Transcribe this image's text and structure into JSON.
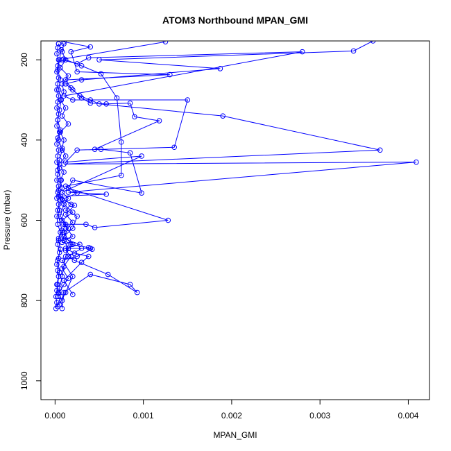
{
  "chart_data": {
    "type": "line",
    "title": "ATOM3 Northbound MPAN_GMI",
    "xlabel": "MPAN_GMI",
    "ylabel": "Pressure (mbar)",
    "xlim": [
      -0.00016,
      0.00424
    ],
    "ylim": [
      1047,
      153
    ],
    "y_inverted": true,
    "grid": false,
    "color": "#0000ff",
    "x_ticks": [
      0,
      0.001,
      0.002,
      0.003,
      0.004
    ],
    "x_tick_labels": [
      "0.000",
      "0.001",
      "0.002",
      "0.003",
      "0.004"
    ],
    "y_ticks": [
      200,
      400,
      600,
      800,
      1000
    ],
    "y_tick_labels": [
      "200",
      "400",
      "600",
      "800",
      "1000"
    ],
    "series": [
      {
        "points": [
          [
            1e-05,
            820
          ],
          [
            2e-05,
            805
          ],
          [
            1e-05,
            790
          ],
          [
            2e-05,
            775
          ],
          [
            3e-05,
            760
          ],
          [
            4e-05,
            740
          ],
          [
            3e-05,
            725
          ],
          [
            2e-05,
            710
          ],
          [
            4e-05,
            695
          ],
          [
            5e-05,
            680
          ],
          [
            3e-05,
            660
          ],
          [
            4e-05,
            645
          ],
          [
            6e-05,
            630
          ],
          [
            3e-05,
            610
          ],
          [
            2e-05,
            590
          ],
          [
            5e-05,
            575
          ],
          [
            4e-05,
            560
          ],
          [
            2e-05,
            545
          ],
          [
            3e-05,
            530
          ],
          [
            4e-05,
            515
          ],
          [
            2e-05,
            500
          ],
          [
            3e-05,
            485
          ],
          [
            5e-05,
            470
          ],
          [
            2e-05,
            455
          ],
          [
            3e-05,
            440
          ],
          [
            4e-05,
            425
          ],
          [
            2e-05,
            410
          ],
          [
            3e-05,
            395
          ],
          [
            5e-05,
            380
          ],
          [
            2e-05,
            365
          ],
          [
            3e-05,
            350
          ],
          [
            4e-05,
            335
          ],
          [
            2e-05,
            320
          ],
          [
            3e-05,
            305
          ],
          [
            4e-05,
            290
          ],
          [
            2e-05,
            275
          ],
          [
            3e-05,
            260
          ],
          [
            4e-05,
            245
          ],
          [
            2e-05,
            230
          ],
          [
            3e-05,
            215
          ],
          [
            4e-05,
            200
          ],
          [
            2e-05,
            185
          ],
          [
            3e-05,
            170
          ],
          [
            4e-05,
            160
          ]
        ]
      },
      {
        "points": [
          [
            3e-05,
            815
          ],
          [
            6e-05,
            790
          ],
          [
            5e-05,
            770
          ],
          [
            8e-05,
            740
          ],
          [
            0.0001,
            715
          ],
          [
            0.00012,
            690
          ],
          [
            0.00015,
            670
          ],
          [
            0.0001,
            650
          ],
          [
            8e-05,
            630
          ],
          [
            0.00012,
            610
          ],
          [
            6e-05,
            590
          ],
          [
            0.0001,
            560
          ],
          [
            4e-05,
            540
          ],
          [
            8e-05,
            520
          ],
          [
            6e-05,
            500
          ],
          [
            0.0001,
            480
          ],
          [
            5e-05,
            460
          ],
          [
            0.00012,
            440
          ],
          [
            8e-05,
            420
          ],
          [
            0.0001,
            400
          ],
          [
            6e-05,
            380
          ],
          [
            0.00015,
            360
          ],
          [
            8e-05,
            340
          ],
          [
            0.00012,
            320
          ],
          [
            6e-05,
            300
          ],
          [
            0.0001,
            280
          ],
          [
            8e-05,
            260
          ],
          [
            0.00015,
            240
          ],
          [
            6e-05,
            220
          ],
          [
            0.00012,
            200
          ],
          [
            8e-05,
            180
          ],
          [
            0.0001,
            160
          ]
        ]
      },
      {
        "points": [
          [
            8e-05,
            820
          ],
          [
            0.0001,
            780
          ],
          [
            0.0004,
            735
          ],
          [
            0.00085,
            760
          ],
          [
            0.00093,
            780
          ],
          [
            0.0006,
            735
          ],
          [
            0.00022,
            700
          ],
          [
            0.00015,
            690
          ],
          [
            0.0003,
            670
          ],
          [
            0.0004,
            670
          ],
          [
            0.00015,
            670
          ],
          [
            0.0001,
            650
          ],
          [
            0.0002,
            640
          ],
          [
            0.0001,
            610
          ],
          [
            0.00035,
            610
          ],
          [
            0.00045,
            618
          ],
          [
            0.00128,
            600
          ],
          [
            0.00015,
            520
          ],
          [
            0.0002,
            500
          ],
          [
            0.00098,
            532
          ],
          [
            0.00085,
            432
          ],
          [
            0.00052,
            423
          ],
          [
            0.00045,
            423
          ],
          [
            0.00118,
            352
          ],
          [
            0.0009,
            342
          ],
          [
            0.00085,
            308
          ],
          [
            0.00058,
            310
          ],
          [
            0.0004,
            308
          ],
          [
            0.0003,
            295
          ],
          [
            0.00018,
            270
          ],
          [
            0.00012,
            250
          ],
          [
            0.0013,
            237
          ],
          [
            0.00025,
            230
          ],
          [
            0.00018,
            180
          ],
          [
            0.0004,
            168
          ],
          [
            0.0001,
            155
          ]
        ]
      },
      {
        "points": [
          [
            5e-05,
            810
          ],
          [
            0.00012,
            780
          ],
          [
            0.0002,
            740
          ],
          [
            8e-05,
            700
          ],
          [
            0.00025,
            690
          ],
          [
            0.00042,
            672
          ],
          [
            0.00038,
            668
          ],
          [
            0.00018,
            660
          ],
          [
            8e-05,
            655
          ],
          [
            0.0001,
            640
          ],
          [
            0.0002,
            620
          ],
          [
            0.00025,
            590
          ],
          [
            0.00012,
            575
          ],
          [
            0.00018,
            560
          ],
          [
            6e-05,
            540
          ],
          [
            0.00058,
            535
          ],
          [
            0.00015,
            530
          ],
          [
            0.00409,
            455
          ],
          [
            0.0001,
            460
          ],
          [
            0.00368,
            425
          ],
          [
            0.0019,
            340
          ],
          [
            0.0005,
            310
          ],
          [
            0.0004,
            300
          ],
          [
            0.00028,
            290
          ],
          [
            0.0002,
            275
          ],
          [
            0.00012,
            260
          ],
          [
            0.0003,
            250
          ],
          [
            0.00187,
            222
          ],
          [
            0.0005,
            200
          ],
          [
            0.00338,
            178
          ],
          [
            0.0036,
            153
          ]
        ]
      },
      {
        "points": [
          [
            8e-05,
            800
          ],
          [
            4e-05,
            782
          ],
          [
            0.0001,
            760
          ],
          [
            0.00015,
            745
          ],
          [
            8e-05,
            720
          ],
          [
            0.00018,
            690
          ],
          [
            0.00012,
            675
          ],
          [
            0.0002,
            660
          ],
          [
            0.0001,
            640
          ],
          [
            0.00015,
            620
          ],
          [
            8e-05,
            600
          ],
          [
            0.0002,
            580
          ],
          [
            0.0001,
            560
          ],
          [
            0.00015,
            545
          ],
          [
            8e-05,
            530
          ],
          [
            0.00098,
            440
          ],
          [
            0.00012,
            455
          ],
          [
            0.00025,
            425
          ],
          [
            0.00135,
            418
          ],
          [
            0.0015,
            300
          ],
          [
            0.0002,
            300
          ],
          [
            0.0001,
            290
          ],
          [
            0.0028,
            180
          ],
          [
            0.00038,
            195
          ],
          [
            0.00025,
            210
          ],
          [
            8e-05,
            200
          ]
        ]
      },
      {
        "points": [
          [
            0.0002,
            785
          ],
          [
            0.0001,
            750
          ],
          [
            0.0003,
            705
          ],
          [
            0.00038,
            690
          ],
          [
            0.00022,
            682
          ],
          [
            0.00012,
            670
          ],
          [
            0.00028,
            660
          ],
          [
            0.00015,
            650
          ],
          [
            0.0001,
            630
          ],
          [
            0.0002,
            605
          ],
          [
            0.00012,
            585
          ],
          [
            0.00022,
            563
          ],
          [
            8e-05,
            548
          ],
          [
            0.00025,
            532
          ],
          [
            0.00012,
            515
          ],
          [
            0.00075,
            488
          ],
          [
            0.00075,
            405
          ],
          [
            0.0007,
            295
          ],
          [
            0.00052,
            235
          ],
          [
            0.0003,
            215
          ],
          [
            0.0001,
            198
          ],
          [
            0.00125,
            155
          ]
        ]
      },
      {
        "points": [
          [
            3e-05,
            790
          ],
          [
            2e-05,
            760
          ],
          [
            5e-05,
            730
          ],
          [
            3e-05,
            700
          ],
          [
            6e-05,
            672
          ],
          [
            4e-05,
            650
          ],
          [
            8e-05,
            625
          ],
          [
            5e-05,
            600
          ],
          [
            3e-05,
            575
          ],
          [
            6e-05,
            550
          ],
          [
            4e-05,
            525
          ],
          [
            7e-05,
            500
          ],
          [
            3e-05,
            475
          ],
          [
            5e-05,
            450
          ],
          [
            8e-05,
            425
          ],
          [
            4e-05,
            400
          ],
          [
            6e-05,
            375
          ],
          [
            3e-05,
            350
          ],
          [
            5e-05,
            325
          ],
          [
            7e-05,
            300
          ],
          [
            4e-05,
            275
          ],
          [
            6e-05,
            250
          ],
          [
            3e-05,
            225
          ],
          [
            5e-05,
            200
          ],
          [
            7e-05,
            175
          ],
          [
            4e-05,
            160
          ]
        ]
      }
    ]
  }
}
